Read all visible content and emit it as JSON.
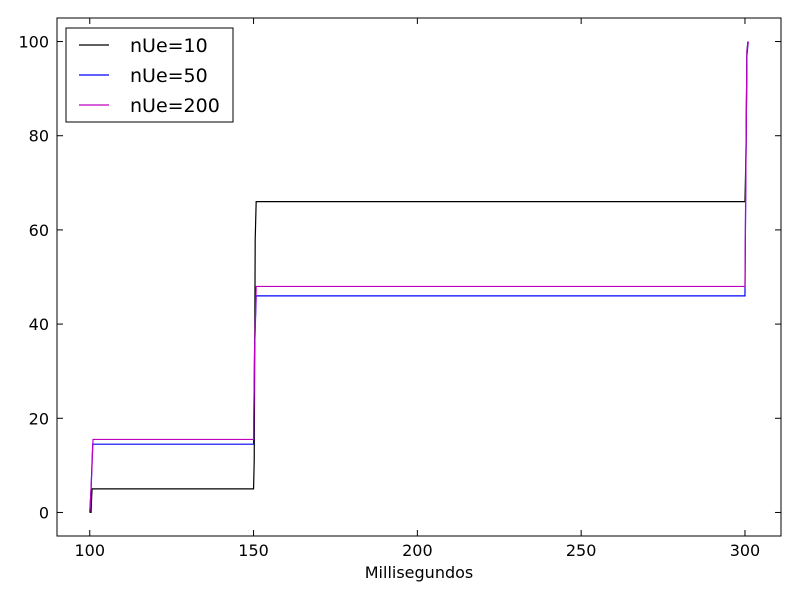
{
  "chart_data": {
    "type": "line",
    "title": "",
    "xlabel": "Millisegundos",
    "ylabel": "",
    "xlim": [
      90,
      311
    ],
    "ylim": [
      -5,
      105
    ],
    "xticks": [
      100,
      150,
      200,
      250,
      300
    ],
    "yticks": [
      0,
      20,
      40,
      60,
      80,
      100
    ],
    "grid": false,
    "legend_position": "top-left",
    "series": [
      {
        "name": "nUe=10",
        "color": "#000000",
        "points": [
          [
            100,
            0
          ],
          [
            100.4,
            0
          ],
          [
            100.5,
            2
          ],
          [
            100.7,
            5
          ],
          [
            150,
            5
          ],
          [
            150.2,
            11
          ],
          [
            150.5,
            58
          ],
          [
            150.8,
            66
          ],
          [
            300,
            66
          ],
          [
            300.3,
            76
          ],
          [
            300.6,
            98
          ],
          [
            300.9,
            100
          ]
        ]
      },
      {
        "name": "nUe=50",
        "color": "#0000ff",
        "points": [
          [
            100,
            0
          ],
          [
            100.4,
            5
          ],
          [
            100.9,
            14.5
          ],
          [
            150,
            14.5
          ],
          [
            150.3,
            34
          ],
          [
            150.8,
            46
          ],
          [
            300,
            46
          ],
          [
            300.3,
            75
          ],
          [
            300.6,
            97
          ],
          [
            301,
            100
          ]
        ]
      },
      {
        "name": "nUe=200",
        "color": "#bf00bf",
        "points": [
          [
            100,
            0
          ],
          [
            100.4,
            5
          ],
          [
            101,
            15.5
          ],
          [
            150,
            15.5
          ],
          [
            150.3,
            34
          ],
          [
            150.8,
            48
          ],
          [
            300,
            48
          ],
          [
            300.3,
            75
          ],
          [
            300.6,
            98
          ],
          [
            301,
            100
          ]
        ]
      }
    ]
  }
}
